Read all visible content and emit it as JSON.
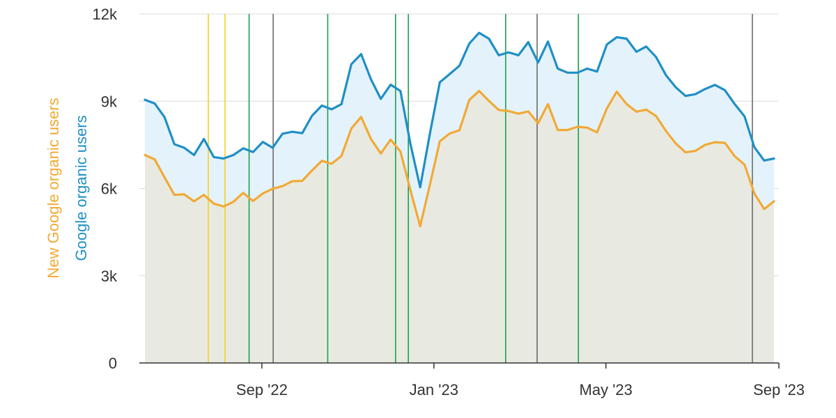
{
  "chart_data": {
    "type": "area",
    "title": "",
    "xlabel": "",
    "ylabel_primary": "Google organic users",
    "ylabel_secondary": "New Google organic users",
    "ylim": [
      0,
      12000
    ],
    "y_ticks": [
      {
        "value": 0,
        "label": "0"
      },
      {
        "value": 3000,
        "label": "3k"
      },
      {
        "value": 6000,
        "label": "6k"
      },
      {
        "value": 9000,
        "label": "9k"
      },
      {
        "value": 12000,
        "label": "12k"
      }
    ],
    "x_domain": [
      0,
      66
    ],
    "x_ticks": [
      {
        "index": 11.9,
        "label": "Sep '22"
      },
      {
        "index": 29.4,
        "label": "Jan '23"
      },
      {
        "index": 46.9,
        "label": "May '23"
      },
      {
        "index": 64.5,
        "label": "Sep '23"
      }
    ],
    "grid": true,
    "legend": "none",
    "series": [
      {
        "name": "Google organic users",
        "color": "#1f8fc5",
        "fill": "#e4f2fb",
        "values": [
          9050,
          8920,
          8450,
          7520,
          7400,
          7150,
          7700,
          7080,
          7030,
          7150,
          7380,
          7250,
          7600,
          7400,
          7880,
          7950,
          7900,
          8500,
          8850,
          8720,
          8900,
          10270,
          10620,
          9750,
          9080,
          9570,
          9350,
          7550,
          6040,
          7900,
          9650,
          9930,
          10220,
          10980,
          11350,
          11150,
          10580,
          10680,
          10580,
          11030,
          10330,
          11050,
          10120,
          9980,
          9980,
          10120,
          10020,
          10950,
          11200,
          11150,
          10700,
          10880,
          10520,
          9900,
          9480,
          9180,
          9240,
          9420,
          9560,
          9380,
          8900,
          8480,
          7420,
          6960,
          7030
        ]
      },
      {
        "name": "New Google organic users",
        "color": "#f2a934",
        "fill": "#e8eae2",
        "values": [
          7150,
          7000,
          6380,
          5780,
          5800,
          5560,
          5780,
          5480,
          5380,
          5540,
          5850,
          5570,
          5830,
          5990,
          6080,
          6250,
          6260,
          6620,
          6950,
          6850,
          7120,
          8060,
          8460,
          7700,
          7200,
          7680,
          7270,
          5960,
          4700,
          6140,
          7620,
          7890,
          8000,
          9040,
          9350,
          9010,
          8700,
          8660,
          8570,
          8650,
          8240,
          8900,
          8010,
          8010,
          8120,
          8090,
          7930,
          8750,
          9330,
          8900,
          8640,
          8710,
          8490,
          7980,
          7550,
          7240,
          7290,
          7500,
          7590,
          7570,
          7110,
          6820,
          5830,
          5290,
          5560
        ]
      }
    ],
    "annotations": [
      {
        "index": 6.45,
        "color": "#f5d21d"
      },
      {
        "index": 8.15,
        "color": "#f5d21d"
      },
      {
        "index": 10.6,
        "color": "#1aa14a"
      },
      {
        "index": 13.05,
        "color": "#6b6b6b"
      },
      {
        "index": 18.6,
        "color": "#1aa14a"
      },
      {
        "index": 25.5,
        "color": "#1aa14a"
      },
      {
        "index": 26.8,
        "color": "#1aa14a"
      },
      {
        "index": 36.7,
        "color": "#1aa14a"
      },
      {
        "index": 39.9,
        "color": "#6b6b6b"
      },
      {
        "index": 44.1,
        "color": "#1aa14a"
      },
      {
        "index": 61.8,
        "color": "#6b6b6b"
      }
    ]
  }
}
